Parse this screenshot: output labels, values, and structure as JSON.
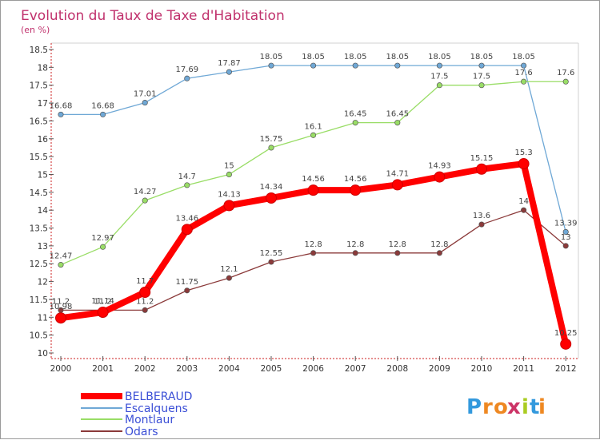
{
  "chart_data": {
    "type": "line",
    "title": "Evolution du Taux de Taxe d'Habitation",
    "subtitle": "(en %)",
    "categories": [
      "2000",
      "2001",
      "2002",
      "2003",
      "2004",
      "2005",
      "2006",
      "2007",
      "2008",
      "2009",
      "2010",
      "2011",
      "2012"
    ],
    "ylim": [
      10,
      18.5
    ],
    "yticks": [
      "10",
      "10.5",
      "11",
      "11.5",
      "12",
      "12.5",
      "13",
      "13.5",
      "14",
      "14.5",
      "15",
      "15.5",
      "16",
      "16.5",
      "17",
      "17.5",
      "18",
      "18.5"
    ],
    "grid": false,
    "legend_position": "bottom-left",
    "series": [
      {
        "name": "BELBERAUD",
        "color": "#ff0000",
        "values": [
          10.98,
          11.14,
          11.7,
          13.46,
          14.13,
          14.34,
          14.56,
          14.56,
          14.71,
          14.93,
          15.15,
          15.3,
          10.25
        ],
        "labels": [
          "10.98",
          "11.14",
          "11.7",
          "13.46",
          "14.13",
          "14.34",
          "14.56",
          "14.56",
          "14.71",
          "14.93",
          "15.15",
          "15.3",
          "10.25"
        ]
      },
      {
        "name": "Escalquens",
        "color": "#6fa8d6",
        "values": [
          16.68,
          16.68,
          17.01,
          17.69,
          17.87,
          18.05,
          18.05,
          18.05,
          18.05,
          18.05,
          18.05,
          18.05,
          13.39
        ],
        "labels": [
          "16.68",
          "16.68",
          "17.01",
          "17.69",
          "17.87",
          "18.05",
          "18.05",
          "18.05",
          "18.05",
          "18.05",
          "18.05",
          "18.05",
          "13.39"
        ]
      },
      {
        "name": "Montlaur",
        "color": "#99dd66",
        "values": [
          12.47,
          12.97,
          14.27,
          14.7,
          15,
          15.75,
          16.1,
          16.45,
          16.45,
          17.5,
          17.5,
          17.6,
          17.6
        ],
        "labels": [
          "12.47",
          "12.97",
          "14.27",
          "14.7",
          "15",
          "15.75",
          "16.1",
          "16.45",
          "16.45",
          "17.5",
          "17.5",
          "17.6",
          "17.6"
        ]
      },
      {
        "name": "Odars",
        "color": "#8b3a3a",
        "values": [
          11.2,
          11.2,
          11.2,
          11.75,
          12.1,
          12.55,
          12.8,
          12.8,
          12.8,
          12.8,
          13.6,
          14,
          13
        ],
        "labels": [
          "11.2",
          "11.2",
          "11.2",
          "11.75",
          "12.1",
          "12.55",
          "12.8",
          "12.8",
          "12.8",
          "12.8",
          "13.6",
          "14",
          "13"
        ]
      }
    ]
  },
  "brand": {
    "logo_letters": [
      "P",
      "r",
      "o",
      "x",
      "i",
      "t",
      "i"
    ],
    "logo_colors": [
      "#3399dd",
      "#ee8822",
      "#ee8822",
      "#cc3366",
      "#aacc22",
      "#3399dd",
      "#ee8822"
    ]
  }
}
